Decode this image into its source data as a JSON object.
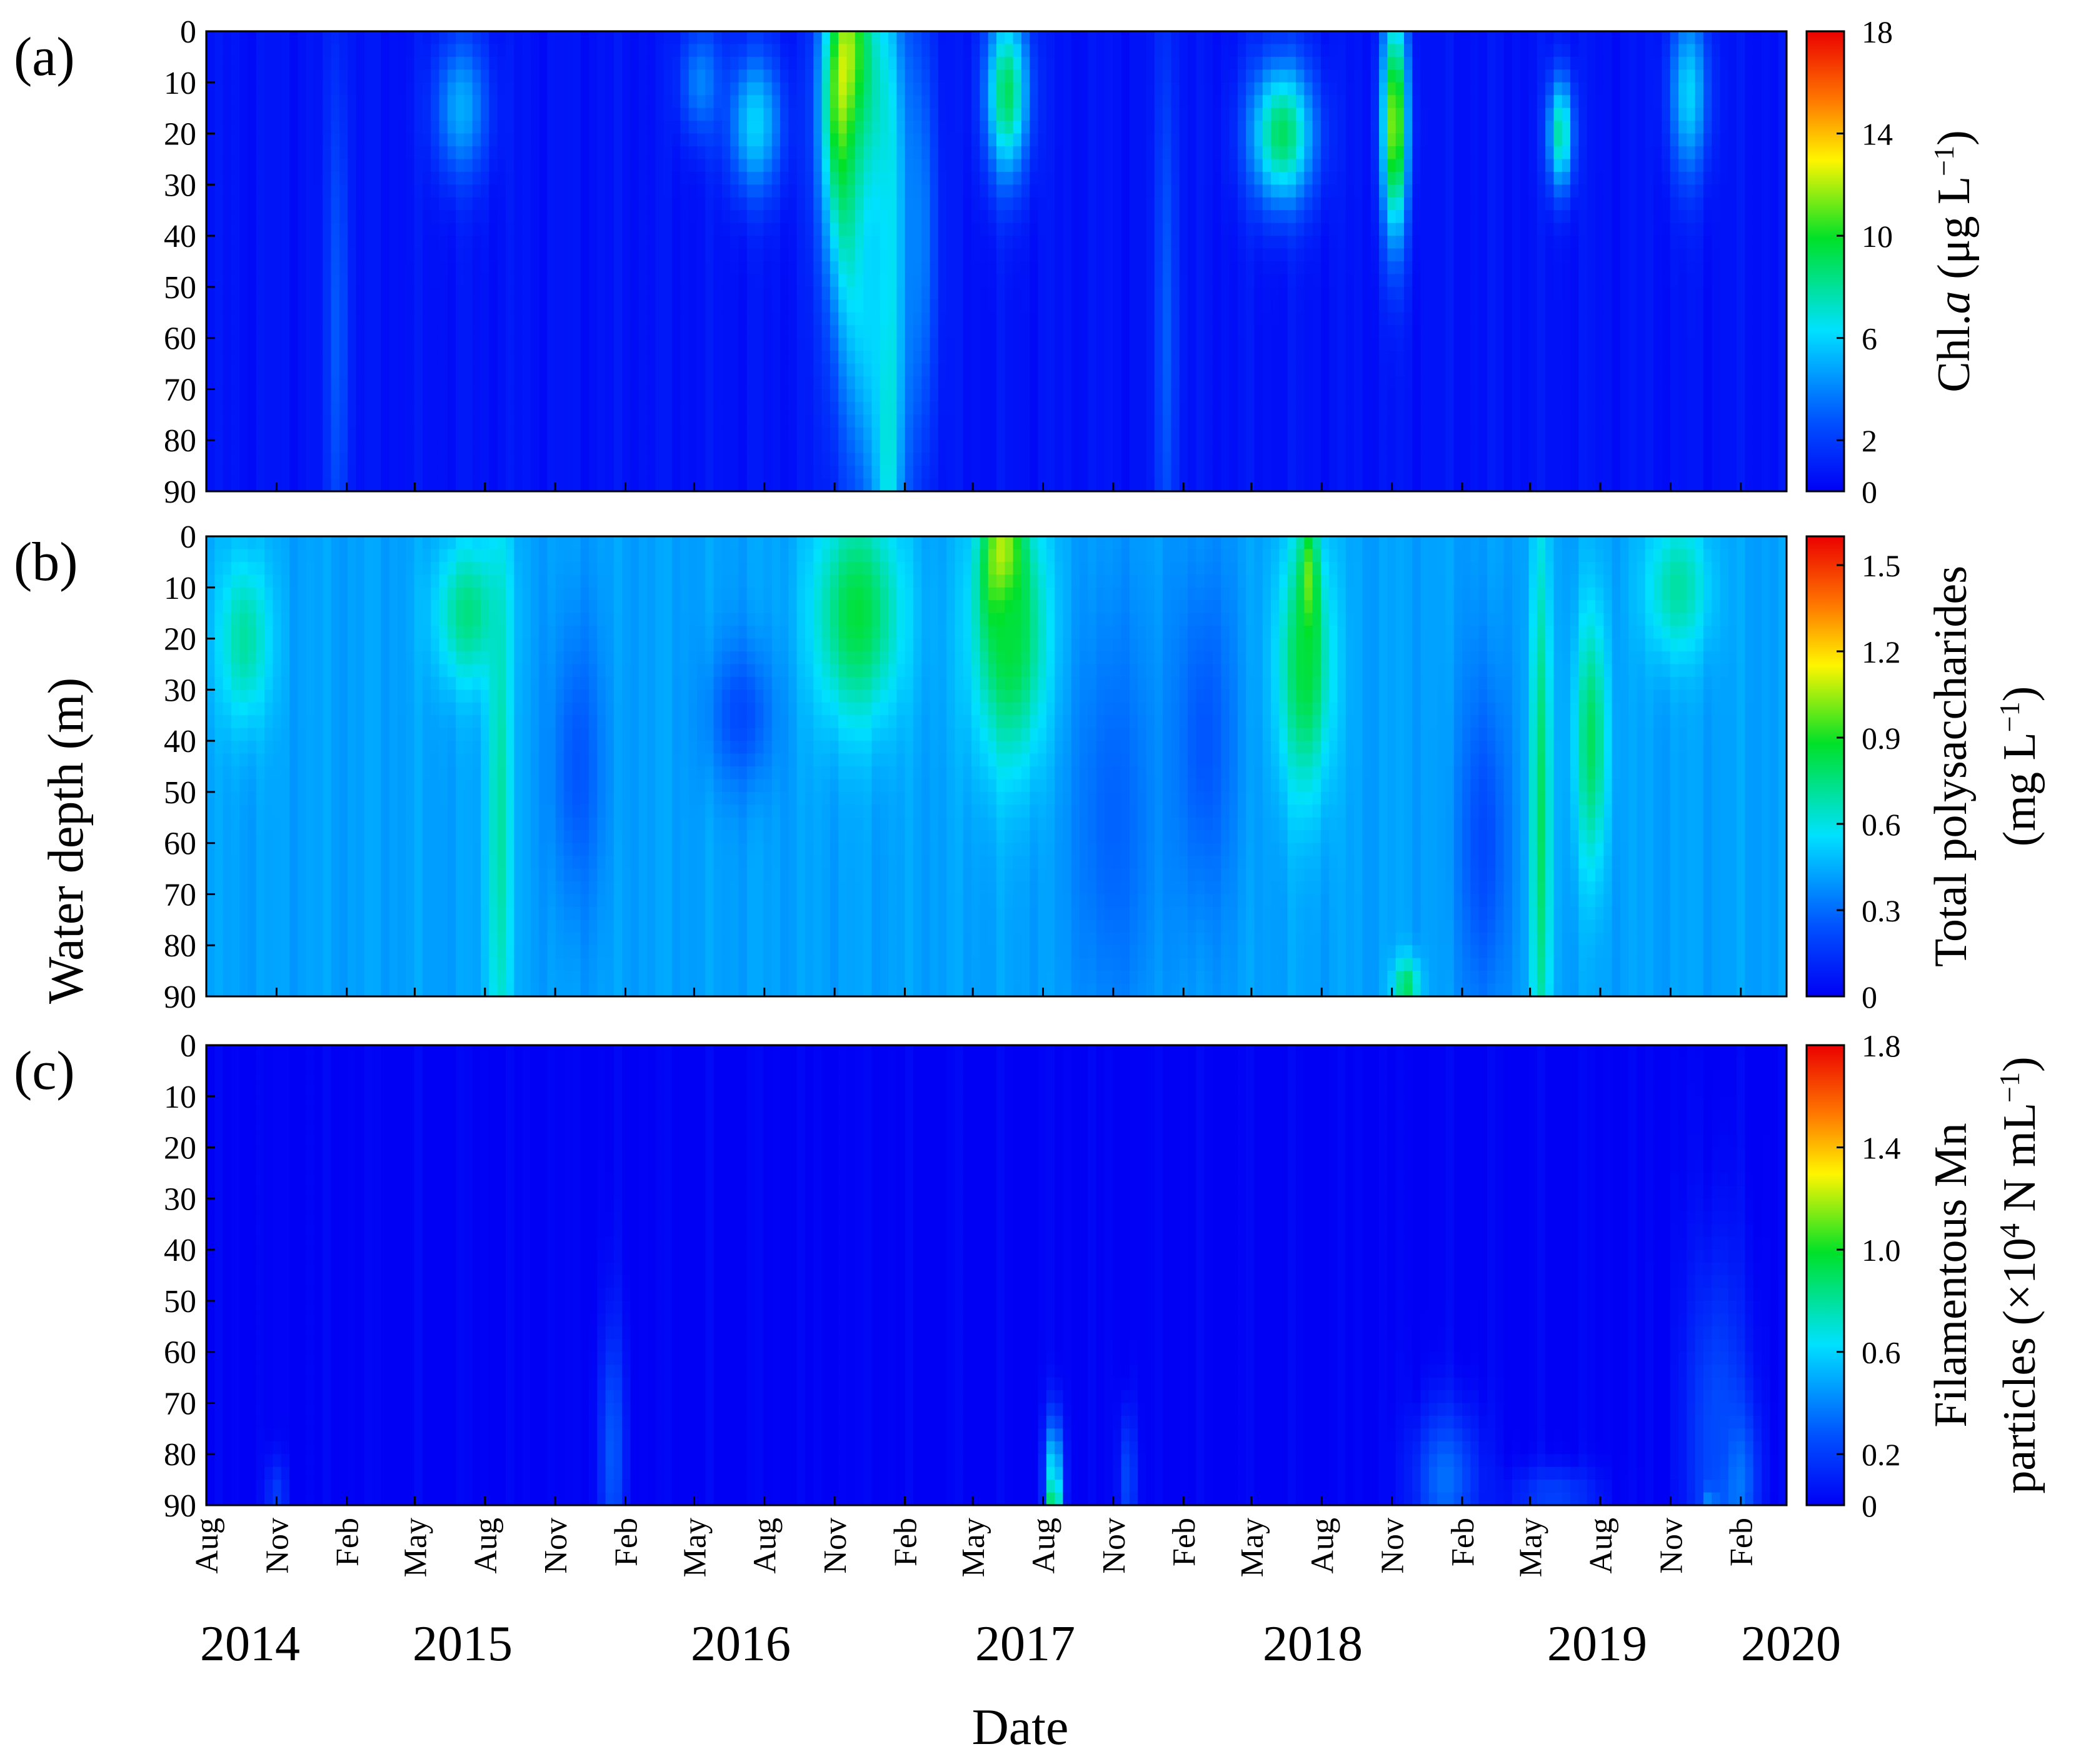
{
  "figure": {
    "ylabel": "Water depth (m)",
    "xlabel": "Date",
    "month_ticks": [
      "Aug",
      "Nov",
      "Feb",
      "May",
      "Aug",
      "Nov",
      "Feb",
      "May",
      "Aug",
      "Nov",
      "Feb",
      "May",
      "Aug",
      "Nov",
      "Feb",
      "May",
      "Aug",
      "Nov",
      "Feb",
      "May",
      "Aug",
      "Nov",
      "Feb"
    ],
    "year_labels": [
      "2014",
      "2015",
      "2016",
      "2017",
      "2018",
      "2019",
      "2020"
    ]
  },
  "chart_data": [
    {
      "panel": "(a)",
      "type": "heatmap",
      "colorbar_label_parts": [
        "Chl.",
        "a",
        " (μg L",
        "−1",
        ")"
      ],
      "colorbar_range": [
        0,
        18
      ],
      "colorbar_ticks": [
        "18",
        "14",
        "10",
        "6",
        "2",
        "0"
      ],
      "colorbar_tick_values": [
        18,
        14,
        10,
        6,
        2,
        0
      ],
      "y_ticks": [
        "0",
        "10",
        "20",
        "30",
        "40",
        "50",
        "60",
        "70",
        "80",
        "90"
      ],
      "ylim": [
        0,
        90
      ],
      "x_range": [
        "2014-08",
        "2020-04"
      ],
      "background_value": 0.6,
      "blobs": [
        {
          "date": "2016-11-20",
          "width_days": 22,
          "depth": 12,
          "depth_spread": 18,
          "value": 17
        },
        {
          "date": "2016-12-10",
          "width_days": 25,
          "depth": 30,
          "depth_spread": 20,
          "value": 15
        },
        {
          "date": "2017-01-10",
          "width_days": 14,
          "depth": 60,
          "depth_spread": 45,
          "value": 9
        },
        {
          "date": "2016-12-20",
          "width_days": 35,
          "depth": 45,
          "depth_spread": 35,
          "value": 6
        },
        {
          "date": "2017-06-15",
          "width_days": 20,
          "depth": 12,
          "depth_spread": 12,
          "value": 9
        },
        {
          "date": "2018-06-10",
          "width_days": 30,
          "depth": 20,
          "depth_spread": 10,
          "value": 9
        },
        {
          "date": "2018-11-05",
          "width_days": 12,
          "depth": 18,
          "depth_spread": 16,
          "value": 12
        },
        {
          "date": "2019-06-10",
          "width_days": 12,
          "depth": 20,
          "depth_spread": 8,
          "value": 8
        },
        {
          "date": "2019-11-25",
          "width_days": 18,
          "depth": 12,
          "depth_spread": 12,
          "value": 6
        },
        {
          "date": "2016-07-20",
          "width_days": 25,
          "depth": 18,
          "depth_spread": 10,
          "value": 6
        },
        {
          "date": "2015-07-01",
          "width_days": 25,
          "depth": 15,
          "depth_spread": 10,
          "value": 5
        },
        {
          "date": "2016-05-10",
          "width_days": 20,
          "depth": 10,
          "depth_spread": 8,
          "value": 4
        },
        {
          "date": "2015-01-20",
          "width_days": 10,
          "depth": 60,
          "depth_spread": 40,
          "value": 3
        },
        {
          "date": "2018-01-10",
          "width_days": 10,
          "depth": 60,
          "depth_spread": 45,
          "value": 3
        },
        {
          "date": "2017-02-20",
          "width_days": 15,
          "depth": 40,
          "depth_spread": 30,
          "value": 4
        }
      ]
    },
    {
      "panel": "(b)",
      "type": "heatmap",
      "colorbar_label_parts": [
        "Total polysaccharides"
      ],
      "colorbar_label_line2_parts": [
        "(mg L",
        "−1",
        ")"
      ],
      "colorbar_range": [
        0,
        1.6
      ],
      "colorbar_ticks": [
        "1.5",
        "1.2",
        "0.9",
        "0.6",
        "0.3",
        "0"
      ],
      "colorbar_tick_values": [
        1.5,
        1.2,
        0.9,
        0.6,
        0.3,
        0
      ],
      "y_ticks": [
        "0",
        "10",
        "20",
        "30",
        "40",
        "50",
        "60",
        "70",
        "80",
        "90"
      ],
      "ylim": [
        0,
        90
      ],
      "x_range": [
        "2014-08",
        "2020-04"
      ],
      "background_value": 0.42,
      "blobs": [
        {
          "date": "2017-06-10",
          "width_days": 18,
          "depth": 7,
          "depth_spread": 10,
          "value": 1.5
        },
        {
          "date": "2017-06-20",
          "width_days": 35,
          "depth": 20,
          "depth_spread": 18,
          "value": 0.85
        },
        {
          "date": "2018-07-15",
          "width_days": 8,
          "depth": 13,
          "depth_spread": 10,
          "value": 1.35
        },
        {
          "date": "2018-07-10",
          "width_days": 25,
          "depth": 25,
          "depth_spread": 18,
          "value": 0.85
        },
        {
          "date": "2016-12-01",
          "width_days": 40,
          "depth": 15,
          "depth_spread": 15,
          "value": 0.85
        },
        {
          "date": "2015-07-10",
          "width_days": 30,
          "depth": 15,
          "depth_spread": 10,
          "value": 0.75
        },
        {
          "date": "2015-08-20",
          "width_days": 12,
          "depth": 55,
          "depth_spread": 45,
          "value": 0.7
        },
        {
          "date": "2019-05-15",
          "width_days": 10,
          "depth": 55,
          "depth_spread": 40,
          "value": 0.8
        },
        {
          "date": "2019-07-20",
          "width_days": 15,
          "depth": 40,
          "depth_spread": 18,
          "value": 0.8
        },
        {
          "date": "2014-09-20",
          "width_days": 25,
          "depth": 20,
          "depth_spread": 12,
          "value": 0.7
        },
        {
          "date": "2018-11-20",
          "width_days": 12,
          "depth": 88,
          "depth_spread": 4,
          "value": 0.8
        },
        {
          "date": "2019-11-10",
          "width_days": 30,
          "depth": 10,
          "depth_spread": 10,
          "value": 0.7
        },
        {
          "date": "2016-07-01",
          "width_days": 30,
          "depth": 35,
          "depth_spread": 10,
          "value": 0.22
        },
        {
          "date": "2015-12-01",
          "width_days": 25,
          "depth": 45,
          "depth_spread": 20,
          "value": 0.25
        },
        {
          "date": "2018-03-01",
          "width_days": 30,
          "depth": 40,
          "depth_spread": 25,
          "value": 0.25
        },
        {
          "date": "2019-03-01",
          "width_days": 25,
          "depth": 60,
          "depth_spread": 25,
          "value": 0.22
        },
        {
          "date": "2017-11-01",
          "width_days": 40,
          "depth": 55,
          "depth_spread": 30,
          "value": 0.28
        }
      ]
    },
    {
      "panel": "(c)",
      "type": "heatmap",
      "colorbar_label_parts": [
        "Filamentous Mn"
      ],
      "colorbar_label_line2_parts": [
        "particles (×10",
        "4",
        " N mL",
        "−1",
        ")"
      ],
      "colorbar_range": [
        0,
        1.8
      ],
      "colorbar_ticks": [
        "1.8",
        "1.4",
        "1.0",
        "0.6",
        "0.2",
        "0"
      ],
      "colorbar_tick_values": [
        1.8,
        1.4,
        1.0,
        0.6,
        0.2,
        0
      ],
      "y_ticks": [
        "0",
        "10",
        "20",
        "30",
        "40",
        "50",
        "60",
        "70",
        "80",
        "90"
      ],
      "ylim": [
        0,
        90
      ],
      "x_range": [
        "2014-08",
        "2020-04"
      ],
      "background_value": 0.0,
      "blobs": [
        {
          "date": "2017-08-15",
          "width_days": 5,
          "depth": 89,
          "depth_spread": 3,
          "value": 1.75
        },
        {
          "date": "2017-08-15",
          "width_days": 8,
          "depth": 84,
          "depth_spread": 8,
          "value": 0.7
        },
        {
          "date": "2019-12-25",
          "width_days": 6,
          "depth": 89,
          "depth_spread": 2,
          "value": 1.6
        },
        {
          "date": "2020-01-20",
          "width_days": 20,
          "depth": 85,
          "depth_spread": 10,
          "value": 0.6
        },
        {
          "date": "2020-01-01",
          "width_days": 30,
          "depth": 75,
          "depth_spread": 25,
          "value": 0.25
        },
        {
          "date": "2019-01-10",
          "width_days": 30,
          "depth": 85,
          "depth_spread": 10,
          "value": 0.35
        },
        {
          "date": "2016-01-15",
          "width_days": 12,
          "depth": 80,
          "depth_spread": 18,
          "value": 0.3
        },
        {
          "date": "2017-11-20",
          "width_days": 8,
          "depth": 85,
          "depth_spread": 10,
          "value": 0.25
        },
        {
          "date": "2014-11-01",
          "width_days": 10,
          "depth": 88,
          "depth_spread": 5,
          "value": 0.2
        },
        {
          "date": "2019-06-01",
          "width_days": 40,
          "depth": 88,
          "depth_spread": 4,
          "value": 0.22
        }
      ]
    }
  ]
}
